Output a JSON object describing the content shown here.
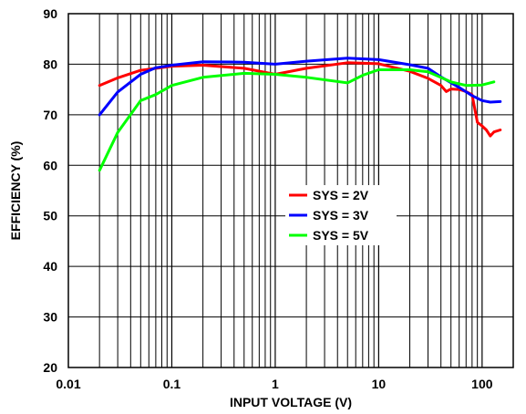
{
  "chart_data": {
    "type": "line",
    "title": "",
    "xlabel": "INPUT VOLTAGE (V)",
    "ylabel": "EFFICIENCY (%)",
    "xscale": "log",
    "xlim": [
      0.01,
      200
    ],
    "ylim": [
      20,
      90
    ],
    "grid": true,
    "legend_position": "center-right",
    "x_tick_labels": [
      "0.01",
      "0.1",
      "1",
      "10",
      "100"
    ],
    "y_tick_labels": [
      "20",
      "30",
      "40",
      "50",
      "60",
      "70",
      "80",
      "90"
    ],
    "series": [
      {
        "name": "SYS = 2V",
        "color": "#ff0000",
        "x": [
          0.02,
          0.03,
          0.05,
          0.1,
          0.2,
          0.5,
          1,
          2,
          5,
          10,
          20,
          30,
          40,
          45,
          50,
          60,
          70,
          80,
          90,
          100,
          110,
          120,
          130,
          150
        ],
        "y": [
          75.8,
          77.3,
          78.8,
          79.6,
          79.8,
          79.2,
          78,
          79.2,
          80.3,
          80.1,
          78.6,
          77.2,
          75.8,
          74.6,
          75.1,
          75.0,
          74.6,
          74.0,
          68.5,
          67.8,
          67.0,
          65.8,
          66.6,
          67.0
        ]
      },
      {
        "name": "SYS = 3V",
        "color": "#0000ff",
        "x": [
          0.02,
          0.03,
          0.05,
          0.07,
          0.1,
          0.2,
          0.5,
          1,
          2,
          5,
          10,
          20,
          30,
          40,
          60,
          80,
          100,
          120,
          150
        ],
        "y": [
          70.0,
          74.5,
          78.0,
          79.3,
          79.8,
          80.5,
          80.4,
          80.0,
          80.6,
          81.2,
          80.9,
          79.9,
          79.2,
          77.5,
          75.4,
          73.8,
          72.8,
          72.5,
          72.6
        ]
      },
      {
        "name": "SYS = 5V",
        "color": "#00ff00",
        "x": [
          0.02,
          0.03,
          0.05,
          0.07,
          0.1,
          0.2,
          0.5,
          1,
          2,
          5,
          7,
          10,
          20,
          30,
          50,
          70,
          100,
          130
        ],
        "y": [
          59.0,
          66.5,
          72.8,
          74.0,
          75.8,
          77.4,
          78.2,
          78.0,
          77.4,
          76.3,
          77.8,
          78.9,
          78.9,
          78.5,
          76.5,
          75.8,
          75.9,
          76.5
        ]
      }
    ]
  }
}
